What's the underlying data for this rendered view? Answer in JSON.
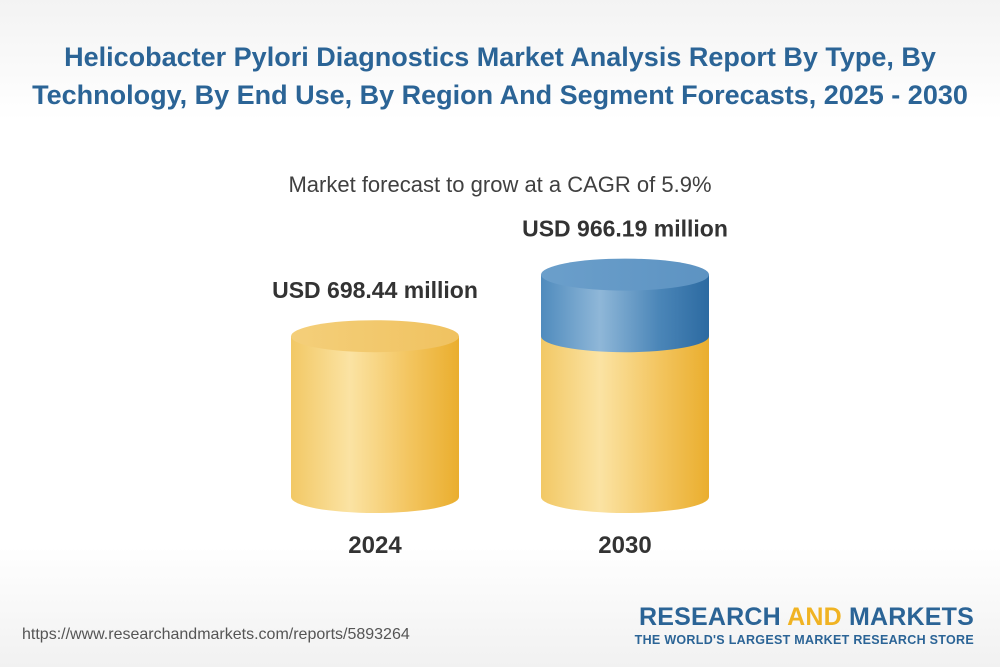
{
  "header": {
    "title": "Helicobacter Pylori Diagnostics Market Analysis Report By Type, By Technology, By End Use, By Region And Segment Forecasts, 2025 - 2030",
    "subtitle": "Market forecast to grow at a CAGR of 5.9%"
  },
  "chart_data": {
    "type": "bar",
    "categories": [
      "2024",
      "2030"
    ],
    "values": [
      698.44,
      966.19
    ],
    "value_labels": [
      "USD 698.44 million",
      "USD 966.19 million"
    ],
    "unit": "USD million",
    "colors": {
      "base": "#f2c35a",
      "growth": "#3f7fb6"
    }
  },
  "footer": {
    "url": "https://www.researchandmarkets.com/reports/5893264",
    "logo_primary_1": "RESEARCH",
    "logo_accent": "AND",
    "logo_primary_2": "MARKETS",
    "logo_tagline": "THE WORLD'S LARGEST MARKET RESEARCH STORE"
  }
}
